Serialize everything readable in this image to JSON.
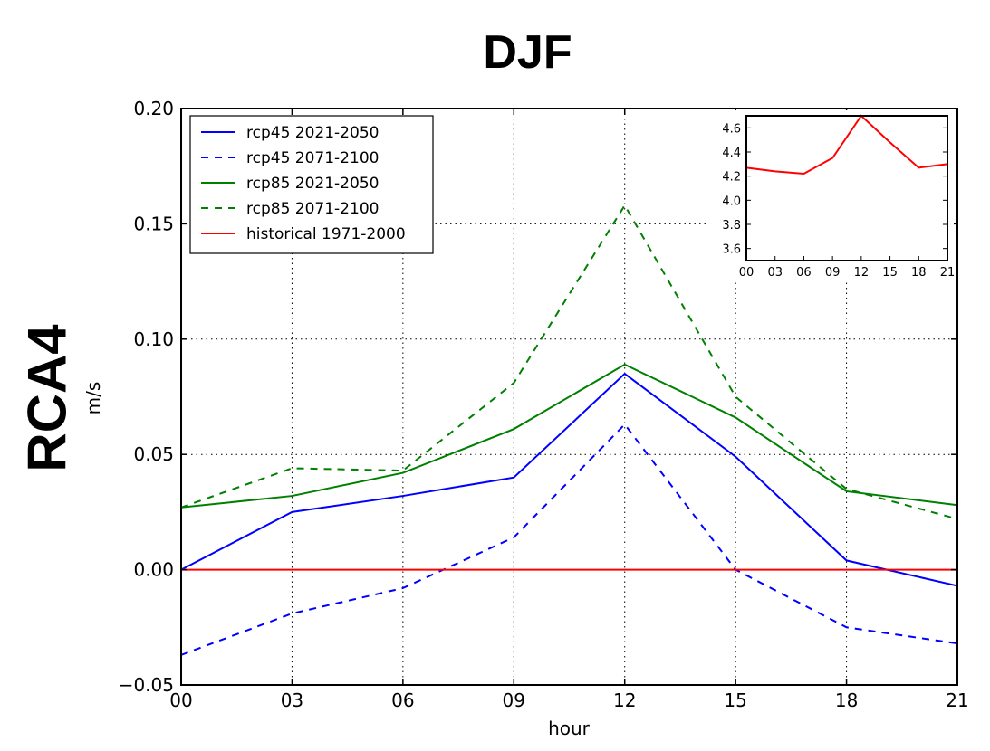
{
  "figure": {
    "title": "DJF",
    "row_label": "RCA4"
  },
  "chart_data": [
    {
      "type": "line",
      "title": "DJF",
      "xlabel": "hour",
      "ylabel": "m/s",
      "categories": [
        "00",
        "03",
        "06",
        "09",
        "12",
        "15",
        "18",
        "21"
      ],
      "x": [
        0,
        3,
        6,
        9,
        12,
        15,
        18,
        21
      ],
      "xlim": [
        0,
        21
      ],
      "ylim": [
        -0.05,
        0.2
      ],
      "yticks": [
        -0.05,
        0.0,
        0.05,
        0.1,
        0.15,
        0.2
      ],
      "ytick_labels": [
        "−0.05",
        "0.00",
        "0.05",
        "0.10",
        "0.15",
        "0.20"
      ],
      "grid": true,
      "legend_position": "top-left",
      "series": [
        {
          "name": "rcp45 2021-2050",
          "color": "#0000ff",
          "style": "solid",
          "values": [
            0.0,
            0.025,
            0.032,
            0.04,
            0.085,
            0.049,
            0.004,
            -0.007
          ]
        },
        {
          "name": "rcp45 2071-2100",
          "color": "#0000ff",
          "style": "dashed",
          "values": [
            -0.037,
            -0.019,
            -0.008,
            0.014,
            0.063,
            0.0,
            -0.025,
            -0.032
          ]
        },
        {
          "name": "rcp85 2021-2050",
          "color": "#008000",
          "style": "solid",
          "values": [
            0.027,
            0.032,
            0.042,
            0.061,
            0.089,
            0.066,
            0.034,
            0.028
          ]
        },
        {
          "name": "rcp85 2071-2100",
          "color": "#008000",
          "style": "dashed",
          "values": [
            0.027,
            0.044,
            0.043,
            0.081,
            0.158,
            0.075,
            0.035,
            0.022
          ]
        },
        {
          "name": "historical 1971-2000",
          "color": "#ff0000",
          "style": "solid",
          "values": [
            0,
            0,
            0,
            0,
            0,
            0,
            0,
            0
          ]
        }
      ]
    },
    {
      "type": "line",
      "title": "",
      "position": "inset top-right",
      "categories": [
        "00",
        "03",
        "06",
        "09",
        "12",
        "15",
        "18",
        "21"
      ],
      "x": [
        0,
        3,
        6,
        9,
        12,
        15,
        18,
        21
      ],
      "xlim": [
        0,
        21
      ],
      "ylim": [
        3.5,
        4.7
      ],
      "yticks": [
        3.6,
        3.8,
        4.0,
        4.2,
        4.4,
        4.6
      ],
      "ytick_labels": [
        "3.6",
        "3.8",
        "4.0",
        "4.2",
        "4.4",
        "4.6"
      ],
      "series": [
        {
          "name": "historical 1971-2000",
          "color": "#ff0000",
          "style": "solid",
          "values": [
            4.27,
            4.24,
            4.22,
            4.35,
            4.7,
            4.48,
            4.27,
            4.3
          ]
        }
      ]
    }
  ]
}
